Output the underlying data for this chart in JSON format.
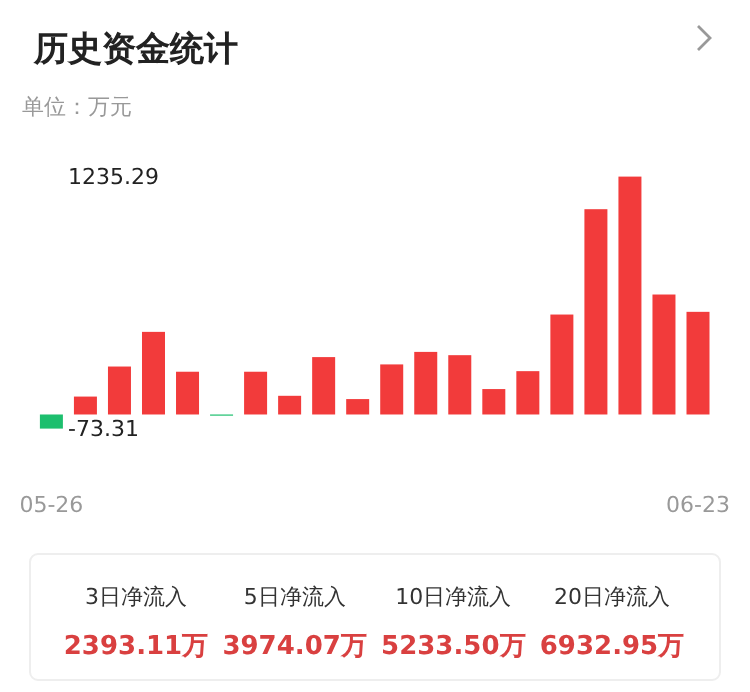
{
  "chart_data": {
    "type": "bar",
    "title": "历史资金统计",
    "ylabel": "单位：万元",
    "categories": [
      "05-26",
      null,
      null,
      null,
      null,
      null,
      null,
      null,
      null,
      null,
      null,
      null,
      null,
      null,
      null,
      null,
      null,
      null,
      null,
      "06-23"
    ],
    "values": [
      -73.31,
      93,
      249,
      429,
      222,
      -3,
      222,
      97,
      298,
      80,
      260,
      325,
      308,
      132,
      225,
      519,
      1066,
      1235.29,
      623,
      533
    ],
    "colors": [
      "#1dbf6e",
      "#f23b3b",
      "#f23b3b",
      "#f23b3b",
      "#f23b3b",
      "#1dbf6e",
      "#f23b3b",
      "#f23b3b",
      "#f23b3b",
      "#f23b3b",
      "#f23b3b",
      "#f23b3b",
      "#f23b3b",
      "#f23b3b",
      "#f23b3b",
      "#f23b3b",
      "#f23b3b",
      "#f23b3b",
      "#f23b3b",
      "#f23b3b"
    ],
    "ylim": [
      -73.31,
      1235.29
    ],
    "yticks": [
      -73.31,
      1235.29
    ],
    "annotations": [
      "3日净流入",
      "2393.11万",
      "5日净流入",
      "3974.07万",
      "10日净流入",
      "5233.50万",
      "20日净流入",
      "6932.95万"
    ]
  }
}
